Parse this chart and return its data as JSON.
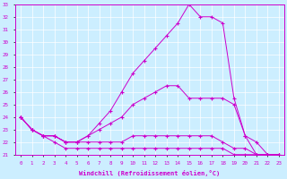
{
  "xlabel": "Windchill (Refroidissement éolien,°C)",
  "ylabel": "",
  "background_color": "#cceeff",
  "line_color": "#cc00cc",
  "xlim": [
    -0.5,
    23.5
  ],
  "ylim": [
    21,
    33
  ],
  "xticks": [
    0,
    1,
    2,
    3,
    4,
    5,
    6,
    7,
    8,
    9,
    10,
    11,
    12,
    13,
    14,
    15,
    16,
    17,
    18,
    19,
    20,
    21,
    22,
    23
  ],
  "yticks": [
    21,
    22,
    23,
    24,
    25,
    26,
    27,
    28,
    29,
    30,
    31,
    32,
    33
  ],
  "series": [
    [
      24.0,
      23.0,
      22.5,
      22.0,
      21.5,
      21.5,
      21.5,
      21.5,
      21.5,
      21.5,
      21.5,
      21.5,
      21.5,
      21.5,
      21.5,
      21.5,
      21.5,
      21.5,
      21.5,
      21.0,
      21.0,
      21.0,
      21.0,
      21.0
    ],
    [
      24.0,
      23.0,
      22.5,
      22.5,
      22.0,
      22.0,
      22.0,
      22.0,
      22.0,
      22.0,
      22.5,
      22.5,
      22.5,
      22.5,
      22.5,
      22.5,
      22.5,
      22.5,
      22.0,
      21.5,
      21.5,
      21.0,
      21.0,
      21.0
    ],
    [
      24.0,
      23.0,
      22.5,
      22.5,
      22.0,
      22.0,
      22.5,
      23.0,
      23.5,
      24.0,
      25.0,
      25.5,
      26.0,
      26.5,
      26.5,
      25.5,
      25.5,
      25.5,
      25.5,
      25.0,
      22.5,
      22.0,
      21.0,
      21.0
    ],
    [
      24.0,
      23.0,
      22.5,
      22.5,
      22.0,
      22.0,
      22.5,
      23.5,
      24.5,
      26.0,
      27.5,
      28.5,
      29.5,
      30.5,
      31.5,
      33.0,
      32.0,
      32.0,
      31.5,
      25.5,
      22.5,
      21.0,
      21.0,
      21.0
    ]
  ]
}
